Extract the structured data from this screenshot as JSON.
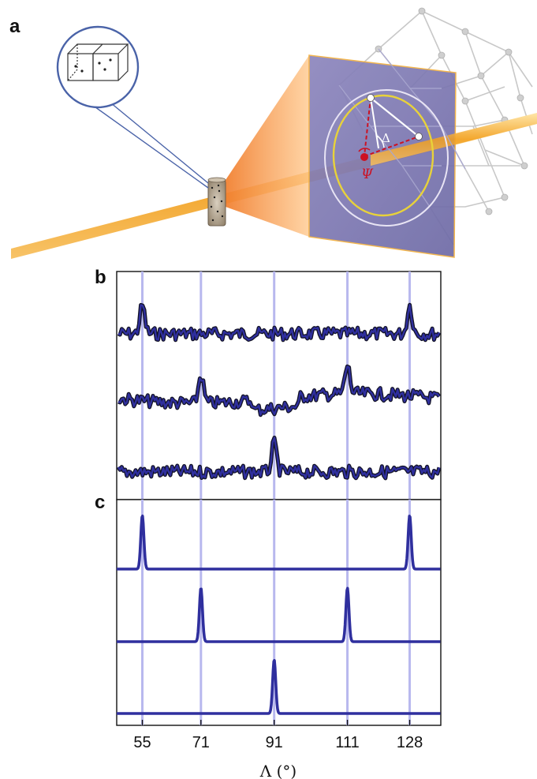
{
  "panels": {
    "a": "a",
    "b": "b",
    "c": "c"
  },
  "diagram_a": {
    "delta_label": "Δ",
    "psi_label": "Ψ"
  },
  "colors": {
    "trace": "#2f2f9e",
    "trace_dark": "#141428",
    "guide": "#b8b8ee",
    "beam": "#f2a020",
    "plane": "#7a7ab0",
    "ring_yellow": "#e8d23a",
    "marker_red": "#cc1122"
  },
  "chart_data": [
    {
      "panel": "b",
      "type": "line",
      "x": [
        55,
        71,
        91,
        111,
        128
      ],
      "series": [
        {
          "peaks_at": [
            55,
            128
          ]
        },
        {
          "peaks_at": [
            71,
            111
          ]
        },
        {
          "peaks_at": [
            91
          ]
        }
      ]
    },
    {
      "panel": "c",
      "type": "line",
      "xlabel": "Λ (°)",
      "xticks": [
        "55",
        "71",
        "91",
        "111",
        "128"
      ],
      "xticks_values": [
        55,
        71,
        91,
        111,
        128
      ],
      "series": [
        {
          "peaks_at": [
            55,
            128
          ]
        },
        {
          "peaks_at": [
            71,
            111
          ]
        },
        {
          "peaks_at": [
            91
          ]
        }
      ]
    }
  ]
}
